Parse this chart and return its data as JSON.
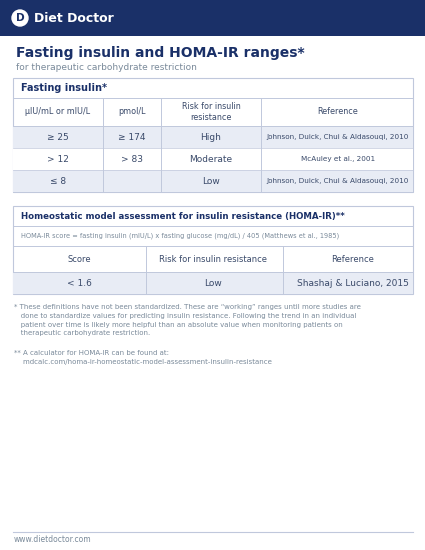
{
  "header_bg": "#1a3068",
  "bg_color": "#ffffff",
  "title": "Fasting insulin and HOMA-IR ranges*",
  "subtitle": "for therapeutic carbohydrate restriction",
  "title_color": "#1a3068",
  "subtitle_color": "#7a8a9a",
  "table1_header": "Fasting insulin*",
  "table1_cols": [
    "μIU/mL or mIU/L",
    "pmol/L",
    "Risk for insulin\nresistance",
    "Reference"
  ],
  "table1_rows": [
    [
      "≥ 25",
      "≥ 174",
      "High",
      "Johnson, Duick, Chui & Aldasouqi, 2010"
    ],
    [
      "> 12",
      "> 83",
      "Moderate",
      "McAuley et al., 2001"
    ],
    [
      "≤ 8",
      "",
      "Low",
      "Johnson, Duick, Chui & Aldasouqi, 2010"
    ]
  ],
  "table1_row_colors": [
    "#e8ecf5",
    "#ffffff",
    "#e8ecf5"
  ],
  "table1_border": "#c0c8dc",
  "table2_title": "Homeostatic model assessment for insulin resistance (HOMA-IR)**",
  "table2_formula": "HOMA-IR score = fasting insulin (mIU/L) x fasting glucose (mg/dL) / 405 (Matthews et al., 1985)",
  "table2_cols": [
    "Score",
    "Risk for insulin resistance",
    "Reference"
  ],
  "table2_rows": [
    [
      "< 1.6",
      "Low",
      "Shashaj & Luciano, 2015"
    ]
  ],
  "table2_row_colors": [
    "#e8ecf5"
  ],
  "table2_border": "#c0c8dc",
  "footnote1": "* These definitions have not been standardized. These are “working” ranges until more studies are\n   done to standardize values for predicting insulin resistance. Following the trend in an individual\n   patient over time is likely more helpful than an absolute value when monitoring patients on\n   therapeutic carbohydrate restriction.",
  "footnote2": "** A calculator for HOMA-IR can be found at:\n    mdcalc.com/homa-ir-homeostatic-model-assessment-insulin-resistance",
  "footer_text": "www.dietdoctor.com",
  "footer_line_color": "#c0c8dc",
  "text_dark": "#1a3068",
  "text_gray": "#7a8a9a",
  "table_text": "#3a4a6a",
  "text_ref": "#3a4a6a"
}
